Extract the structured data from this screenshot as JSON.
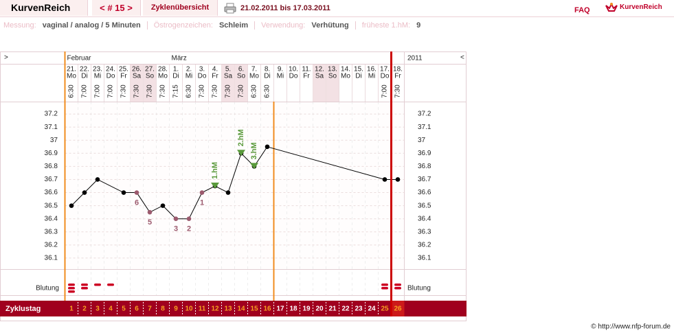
{
  "header": {
    "brand": "KurvenReich",
    "cycle_nav": "< # 15 >",
    "overview": "Zyklenübersicht",
    "period": "21.02.2011 bis 17.03.2011",
    "faq": "FAQ",
    "logo": "KurvenReich"
  },
  "info": [
    {
      "label": "Messung:",
      "value": "vaginal / analog / 5 Minuten"
    },
    {
      "label": "Östrogenzeichen:",
      "value": "Schleim"
    },
    {
      "label": "Verwendung:",
      "value": "Verhütung"
    },
    {
      "label": "früheste 1.hM:",
      "value": "9"
    }
  ],
  "footer": "© http://www.nfp-forum.de",
  "chart_data": {
    "type": "line",
    "nav_prev": ">",
    "nav_next": "<",
    "months": [
      {
        "label": "Februar",
        "day": 1
      },
      {
        "label": "März",
        "day": 9
      }
    ],
    "year": "2011",
    "categories": [
      1,
      2,
      3,
      4,
      5,
      6,
      7,
      8,
      9,
      10,
      11,
      12,
      13,
      14,
      15,
      16,
      17,
      18,
      19,
      20,
      21,
      22,
      23,
      24,
      25,
      26
    ],
    "dates": [
      "21.",
      "22.",
      "23.",
      "24.",
      "25.",
      "26.",
      "27.",
      "28.",
      "1.",
      "2.",
      "3.",
      "4.",
      "5.",
      "6.",
      "7.",
      "8.",
      "9.",
      "10.",
      "11.",
      "12.",
      "13.",
      "14.",
      "15.",
      "16.",
      "17.",
      "18."
    ],
    "weekdays": [
      "Mo",
      "Di",
      "Mi",
      "Do",
      "Fr",
      "Sa",
      "So",
      "Mo",
      "Di",
      "Mi",
      "Do",
      "Fr",
      "Sa",
      "So",
      "Mo",
      "Di",
      "Mi",
      "Do",
      "Fr",
      "Sa",
      "So",
      "Mo",
      "Di",
      "Mi",
      "Do",
      "Fr"
    ],
    "times": [
      "6:30",
      "7:00",
      "7:00",
      "7:00",
      "7:30",
      "7:30",
      "7:30",
      "7:30",
      "7:15",
      "6:30",
      "7:30",
      "7:30",
      "7:30",
      "7:30",
      "6:30",
      "6:30",
      null,
      null,
      null,
      null,
      null,
      null,
      null,
      null,
      "7:00",
      "7:30"
    ],
    "ylim": [
      36.0,
      37.3
    ],
    "yticks": [
      36.1,
      36.2,
      36.3,
      36.4,
      36.5,
      36.6,
      36.7,
      36.8,
      36.9,
      37,
      37.1,
      37.2
    ],
    "grid": true,
    "series": [
      {
        "color": "#000000",
        "x": [
          1,
          2,
          3,
          5,
          6,
          7,
          8,
          9,
          10,
          11,
          12,
          13,
          14,
          15,
          16,
          25,
          26
        ],
        "values": [
          36.5,
          36.6,
          36.7,
          36.6,
          36.6,
          36.45,
          36.5,
          36.4,
          36.4,
          36.6,
          36.65,
          36.6,
          36.9,
          36.8,
          36.95,
          36.7,
          36.7
        ]
      }
    ],
    "low_labels": [
      {
        "x": 6,
        "label": "6"
      },
      {
        "x": 7,
        "label": "5"
      },
      {
        "x": 9,
        "label": "3"
      },
      {
        "x": 10,
        "label": "2"
      },
      {
        "x": 11,
        "label": "1"
      }
    ],
    "low_color": "#9c5a6e",
    "peak_labels": [
      {
        "x": 12,
        "label": "1.hM"
      },
      {
        "x": 14,
        "label": "2.hM"
      },
      {
        "x": 15,
        "label": "3.hM"
      }
    ],
    "peak_color": "#5a9a3c",
    "bleeding": {
      "label": "Blutung",
      "color": "#cc0022",
      "values": [
        3,
        2,
        1,
        1,
        null,
        null,
        null,
        null,
        null,
        null,
        null,
        null,
        null,
        null,
        null,
        null,
        null,
        null,
        null,
        null,
        null,
        null,
        null,
        null,
        2,
        2
      ]
    },
    "row_label": "Zyklustag",
    "evaluation_end_day": 16,
    "cycle_end_day": 25,
    "marker_color": "#f08c1e",
    "cycle_end_color": "#cc0000"
  }
}
